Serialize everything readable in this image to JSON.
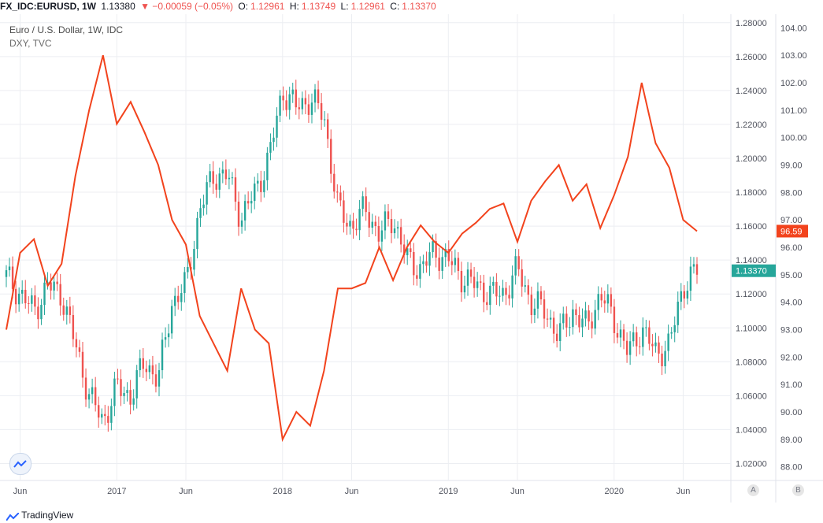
{
  "header": {
    "symbol": "FX_IDC:EURUSD, 1W",
    "last": "1.13380",
    "change": "▼ −0.00059 (−0.05%)",
    "o_label": "O:",
    "o": "1.12961",
    "h_label": "H:",
    "h": "1.13749",
    "l_label": "L:",
    "l": "1.12961",
    "c_label": "C:",
    "c": "1.13370"
  },
  "legend": {
    "main": "Euro / U.S. Dollar, 1W, IDC",
    "compare": "DXY, TVC"
  },
  "footer": {
    "brand": "TradingView"
  },
  "scale_buttons": {
    "a": "A",
    "b": "B"
  },
  "colors": {
    "up": "#26a69a",
    "down": "#ef5350",
    "dxy": "#f2431d",
    "grid": "#eceef2"
  },
  "icons": [
    "tradingview-logo-icon",
    "chart-settings-icon"
  ],
  "chart_data": [
    {
      "type": "candlestick",
      "name": "EURUSD",
      "axis": "left",
      "ylim": [
        1.01,
        1.285
      ],
      "yticks": [
        "1.28000",
        "1.26000",
        "1.24000",
        "1.22000",
        "1.20000",
        "1.18000",
        "1.16000",
        "1.14000",
        "1.12000",
        "1.10000",
        "1.08000",
        "1.06000",
        "1.04000",
        "1.02000"
      ],
      "last_price_label": "1.13370",
      "x_labels": [
        "Jun",
        "2017",
        "Jun",
        "2018",
        "Jun",
        "2019",
        "Jun",
        "2020",
        "Jun"
      ],
      "points": [
        {
          "t": "2016-05",
          "c": 1.13
        },
        {
          "t": "2016-06",
          "c": 1.12
        },
        {
          "t": "2016-07",
          "c": 1.11
        },
        {
          "t": "2016-08",
          "c": 1.125
        },
        {
          "t": "2016-09",
          "c": 1.12
        },
        {
          "t": "2016-10",
          "c": 1.09
        },
        {
          "t": "2016-11",
          "c": 1.06
        },
        {
          "t": "2016-12",
          "c": 1.045
        },
        {
          "t": "2017-01",
          "c": 1.065
        },
        {
          "t": "2017-02",
          "c": 1.06
        },
        {
          "t": "2017-03",
          "c": 1.08
        },
        {
          "t": "2017-04",
          "c": 1.07
        },
        {
          "t": "2017-05",
          "c": 1.115
        },
        {
          "t": "2017-06",
          "c": 1.125
        },
        {
          "t": "2017-07",
          "c": 1.17
        },
        {
          "t": "2017-08",
          "c": 1.19
        },
        {
          "t": "2017-09",
          "c": 1.19
        },
        {
          "t": "2017-10",
          "c": 1.165
        },
        {
          "t": "2017-11",
          "c": 1.18
        },
        {
          "t": "2017-12",
          "c": 1.2
        },
        {
          "t": "2018-01",
          "c": 1.24
        },
        {
          "t": "2018-02",
          "c": 1.23
        },
        {
          "t": "2018-03",
          "c": 1.235
        },
        {
          "t": "2018-04",
          "c": 1.225
        },
        {
          "t": "2018-05",
          "c": 1.17
        },
        {
          "t": "2018-06",
          "c": 1.16
        },
        {
          "t": "2018-07",
          "c": 1.17
        },
        {
          "t": "2018-08",
          "c": 1.155
        },
        {
          "t": "2018-09",
          "c": 1.165
        },
        {
          "t": "2018-10",
          "c": 1.14
        },
        {
          "t": "2018-11",
          "c": 1.135
        },
        {
          "t": "2018-12",
          "c": 1.145
        },
        {
          "t": "2019-01",
          "c": 1.14
        },
        {
          "t": "2019-02",
          "c": 1.13
        },
        {
          "t": "2019-03",
          "c": 1.125
        },
        {
          "t": "2019-04",
          "c": 1.12
        },
        {
          "t": "2019-05",
          "c": 1.12
        },
        {
          "t": "2019-06",
          "c": 1.135
        },
        {
          "t": "2019-07",
          "c": 1.115
        },
        {
          "t": "2019-08",
          "c": 1.11
        },
        {
          "t": "2019-09",
          "c": 1.095
        },
        {
          "t": "2019-10",
          "c": 1.11
        },
        {
          "t": "2019-11",
          "c": 1.1
        },
        {
          "t": "2019-12",
          "c": 1.12
        },
        {
          "t": "2020-01",
          "c": 1.105
        },
        {
          "t": "2020-02",
          "c": 1.085
        },
        {
          "t": "2020-03",
          "c": 1.1
        },
        {
          "t": "2020-04",
          "c": 1.085
        },
        {
          "t": "2020-05",
          "c": 1.09
        },
        {
          "t": "2020-06",
          "c": 1.125
        },
        {
          "t": "2020-07",
          "c": 1.1337
        }
      ]
    },
    {
      "type": "line",
      "name": "DXY",
      "axis": "right",
      "ylim": [
        87.5,
        104.5
      ],
      "yticks": [
        "104.00",
        "103.00",
        "102.00",
        "101.00",
        "100.00",
        "99.00",
        "98.00",
        "97.00",
        "96.00",
        "95.00",
        "94.00",
        "93.00",
        "92.00",
        "91.00",
        "90.00",
        "89.00",
        "88.00"
      ],
      "last_price_label": "96.59",
      "points": [
        {
          "t": "2016-05",
          "v": 93.0
        },
        {
          "t": "2016-06",
          "v": 95.8
        },
        {
          "t": "2016-07",
          "v": 96.3
        },
        {
          "t": "2016-08",
          "v": 94.6
        },
        {
          "t": "2016-09",
          "v": 95.4
        },
        {
          "t": "2016-10",
          "v": 98.6
        },
        {
          "t": "2016-11",
          "v": 101.0
        },
        {
          "t": "2016-12",
          "v": 103.0
        },
        {
          "t": "2017-01",
          "v": 100.5
        },
        {
          "t": "2017-02",
          "v": 101.3
        },
        {
          "t": "2017-03",
          "v": 100.2
        },
        {
          "t": "2017-04",
          "v": 99.0
        },
        {
          "t": "2017-05",
          "v": 97.0
        },
        {
          "t": "2017-06",
          "v": 96.1
        },
        {
          "t": "2017-07",
          "v": 93.5
        },
        {
          "t": "2017-08",
          "v": 92.5
        },
        {
          "t": "2017-09",
          "v": 91.5
        },
        {
          "t": "2017-10",
          "v": 94.5
        },
        {
          "t": "2017-11",
          "v": 93.0
        },
        {
          "t": "2017-12",
          "v": 92.5
        },
        {
          "t": "2018-01",
          "v": 89.0
        },
        {
          "t": "2018-02",
          "v": 90.0
        },
        {
          "t": "2018-03",
          "v": 89.5
        },
        {
          "t": "2018-04",
          "v": 91.5
        },
        {
          "t": "2018-05",
          "v": 94.5
        },
        {
          "t": "2018-06",
          "v": 94.5
        },
        {
          "t": "2018-07",
          "v": 94.7
        },
        {
          "t": "2018-08",
          "v": 96.0
        },
        {
          "t": "2018-09",
          "v": 94.8
        },
        {
          "t": "2018-10",
          "v": 96.0
        },
        {
          "t": "2018-11",
          "v": 96.8
        },
        {
          "t": "2018-12",
          "v": 96.2
        },
        {
          "t": "2019-01",
          "v": 95.8
        },
        {
          "t": "2019-02",
          "v": 96.5
        },
        {
          "t": "2019-03",
          "v": 96.9
        },
        {
          "t": "2019-04",
          "v": 97.4
        },
        {
          "t": "2019-05",
          "v": 97.6
        },
        {
          "t": "2019-06",
          "v": 96.2
        },
        {
          "t": "2019-07",
          "v": 97.7
        },
        {
          "t": "2019-08",
          "v": 98.4
        },
        {
          "t": "2019-09",
          "v": 99.0
        },
        {
          "t": "2019-10",
          "v": 97.7
        },
        {
          "t": "2019-11",
          "v": 98.3
        },
        {
          "t": "2019-12",
          "v": 96.7
        },
        {
          "t": "2020-01",
          "v": 97.9
        },
        {
          "t": "2020-02",
          "v": 99.3
        },
        {
          "t": "2020-03",
          "v": 102.0
        },
        {
          "t": "2020-04",
          "v": 99.8
        },
        {
          "t": "2020-05",
          "v": 98.9
        },
        {
          "t": "2020-06",
          "v": 97.0
        },
        {
          "t": "2020-07",
          "v": 96.59
        }
      ]
    }
  ]
}
